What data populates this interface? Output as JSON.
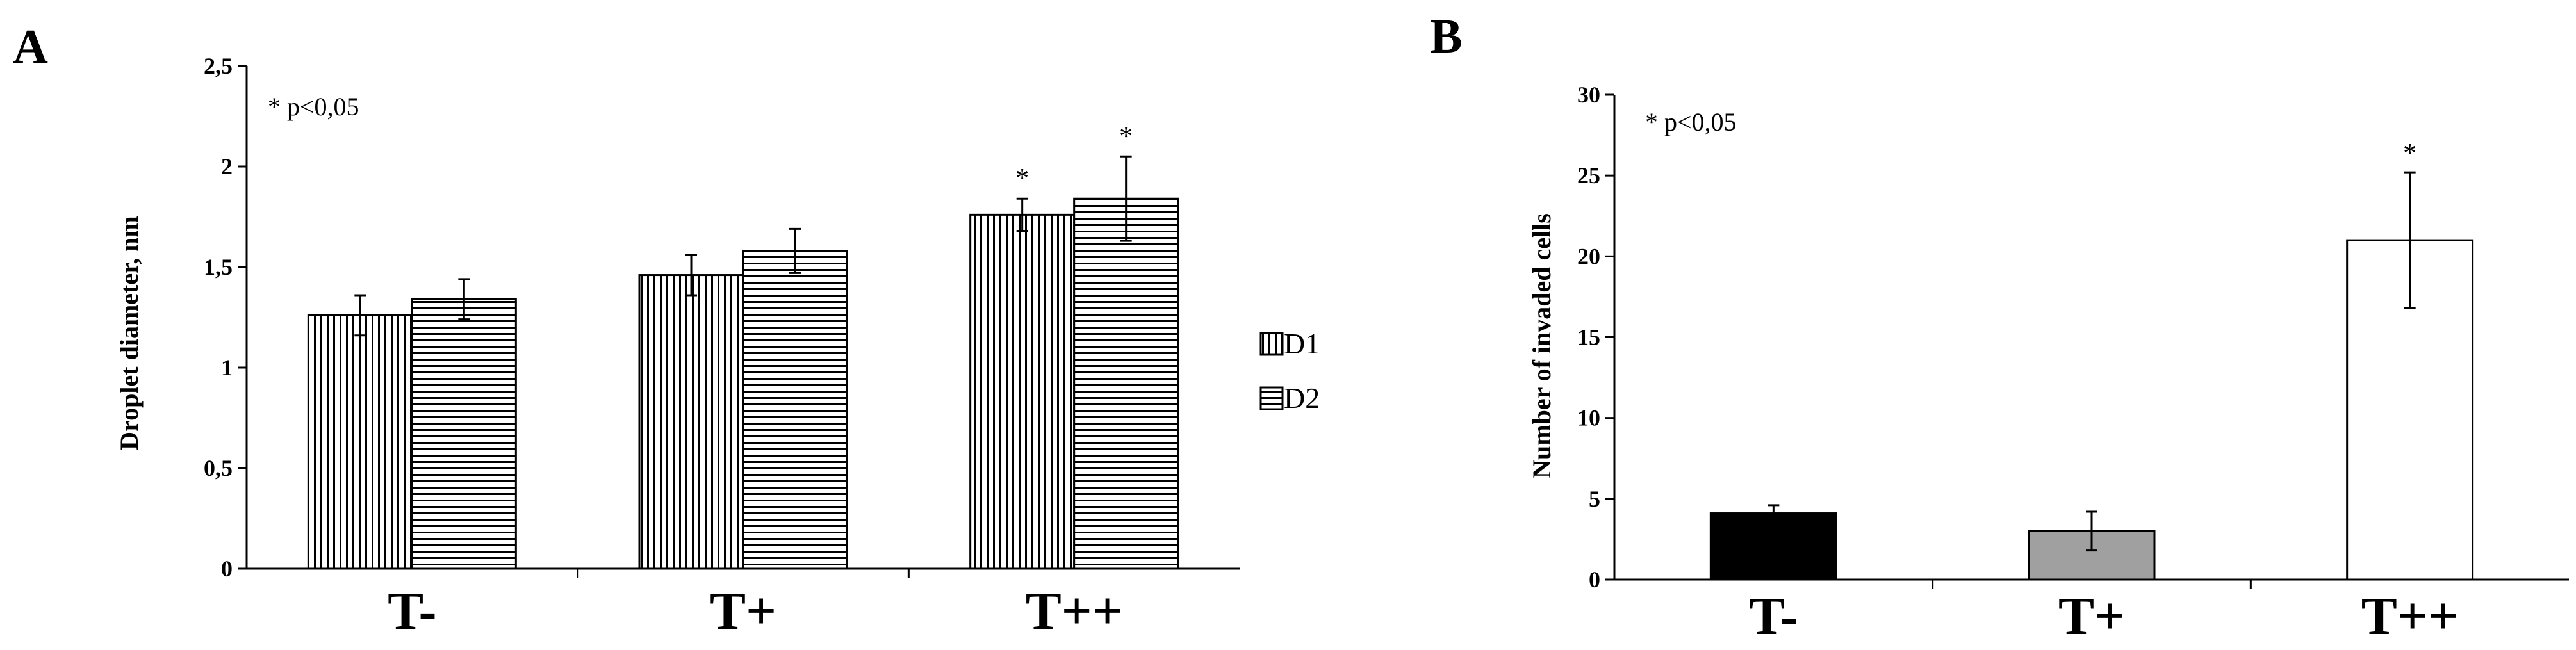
{
  "chart_data": [
    {
      "panel": "A",
      "type": "bar",
      "title": "",
      "xlabel": "",
      "ylabel": "Droplet diameter, nm",
      "ylim": [
        0,
        2.5
      ],
      "yticks": [
        "0",
        "0,5",
        "1",
        "1,5",
        "2",
        "2,5"
      ],
      "categories": [
        "T-",
        "T+",
        "T++"
      ],
      "series": [
        {
          "name": "D1",
          "pattern": "vertical-stripes",
          "values": [
            1.26,
            1.46,
            1.76
          ],
          "errors": [
            0.1,
            0.1,
            0.08
          ]
        },
        {
          "name": "D2",
          "pattern": "horizontal-stripes",
          "values": [
            1.34,
            1.58,
            1.84
          ],
          "errors": [
            0.1,
            0.11,
            0.21
          ]
        }
      ],
      "significance": [
        {
          "category": "T++",
          "series": "D1",
          "label": "*"
        },
        {
          "category": "T++",
          "series": "D2",
          "label": "*"
        }
      ],
      "annotation": "* p<0,05",
      "legend": "right",
      "grid": false
    },
    {
      "panel": "B",
      "type": "bar",
      "title": "",
      "xlabel": "",
      "ylabel": "Number of invaded cells",
      "ylim": [
        0,
        30
      ],
      "yticks": [
        "0",
        "5",
        "10",
        "15",
        "20",
        "25",
        "30"
      ],
      "categories": [
        "T-",
        "T+",
        "T++"
      ],
      "values": [
        4.1,
        3.0,
        21.0
      ],
      "errors": [
        0.5,
        1.2,
        4.2
      ],
      "colors": [
        "#000000",
        "#a0a0a0",
        "#ffffff"
      ],
      "significance": [
        {
          "category": "T++",
          "label": "*"
        }
      ],
      "annotation": "* p<0,05",
      "grid": false
    }
  ]
}
